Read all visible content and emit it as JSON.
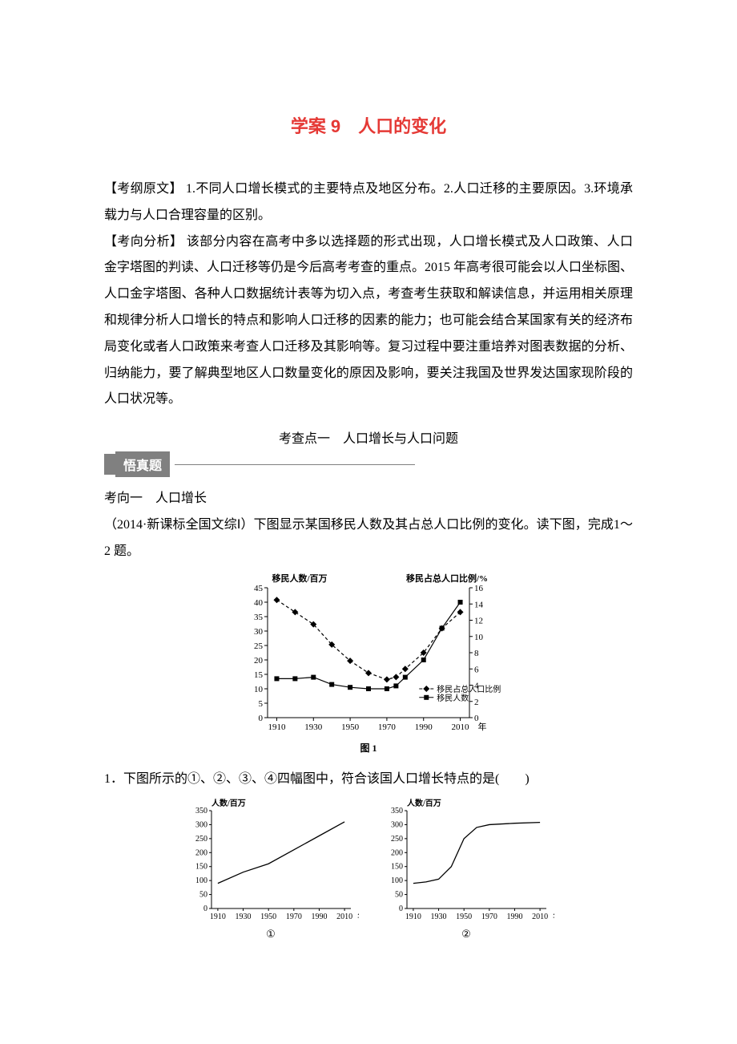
{
  "title": "学案 9　人口的变化",
  "exam_outline_label": "【考纲原文】",
  "exam_outline_text": " 1.不同人口增长模式的主要特点及地区分布。2.人口迁移的主要原因。3.环境承载力与人口合理容量的区别。",
  "analysis_label": "【考向分析】",
  "analysis_text": " 该部分内容在高考中多以选择题的形式出现，人口增长模式及人口政策、人口金字塔图的判读、人口迁移等仍是今后高考考查的重点。2015 年高考很可能会以人口坐标图、人口金字塔图、各种人口数据统计表等为切入点，考查考生获取和解读信息，并运用相关原理和规律分析人口增长的特点和影响人口迁移的因素的能力；也可能会结合某国家有关的经济布局变化或者人口政策来考查人口迁移及其影响等。复习过程中要注重培养对图表数据的分析、归纳能力，要了解典型地区人口数量变化的原因及影响，要关注我国及世界发达国家现阶段的人口状况等。",
  "exam_point_title": "考查点一　人口增长与人口问题",
  "tab_label": "悟真题",
  "direction_label": "考向一　人口增长",
  "intro_text": "（2014·新课标全国文综Ⅰ）下图显示某国移民人数及其占总人口比例的变化。读下图，完成1～2 题。",
  "question1": "1．下图所示的①、②、③、④四幅图中，符合该国人口增长特点的是(　　)",
  "chart1": {
    "left_title": "移民人数/百万",
    "right_title": "移民占总人口比例/%",
    "left_y_ticks": [
      0,
      5,
      10,
      15,
      20,
      25,
      30,
      35,
      40,
      45
    ],
    "right_y_ticks": [
      0,
      2,
      4,
      6,
      8,
      10,
      12,
      14,
      16
    ],
    "x_ticks": [
      "1910",
      "1930",
      "1950",
      "1970",
      "1990",
      "2010"
    ],
    "x_suffix": "年",
    "legend_ratio": "移民占总人口比例",
    "legend_count": "移民人数",
    "caption": "图 1",
    "count_series": {
      "years": [
        1910,
        1920,
        1930,
        1940,
        1950,
        1960,
        1970,
        1975,
        1980,
        1990,
        2000,
        2010
      ],
      "values": [
        13.5,
        13.5,
        14,
        11.5,
        10.5,
        10,
        10,
        11,
        14,
        20,
        31,
        40
      ],
      "marker": "square",
      "color": "#000000"
    },
    "ratio_series": {
      "years": [
        1910,
        1920,
        1930,
        1940,
        1950,
        1960,
        1970,
        1975,
        1980,
        1990,
        2000,
        2010
      ],
      "values": [
        14.5,
        13,
        11.5,
        9,
        7,
        5.5,
        4.7,
        5,
        6,
        8,
        11,
        13
      ],
      "marker": "diamond",
      "color": "#000000"
    },
    "axis_color": "#000000",
    "font_size": 11,
    "caption_fontsize": 12
  },
  "small_charts": {
    "y_title": "人数/百万",
    "y_ticks": [
      0,
      50,
      100,
      150,
      200,
      250,
      300,
      350
    ],
    "x_ticks": [
      "1910",
      "1930",
      "1950",
      "1970",
      "1990",
      "2010"
    ],
    "x_suffix": "年",
    "label1": "①",
    "label2": "②",
    "axis_color": "#000000",
    "line_color": "#000000",
    "font_size": 10,
    "series1": {
      "years": [
        1910,
        1930,
        1950,
        1970,
        1990,
        2010
      ],
      "values": [
        90,
        130,
        160,
        210,
        260,
        310
      ]
    },
    "series2": {
      "years": [
        1910,
        1920,
        1930,
        1940,
        1950,
        1960,
        1970,
        1990,
        2010
      ],
      "values": [
        90,
        95,
        105,
        150,
        250,
        290,
        300,
        305,
        308
      ]
    }
  }
}
